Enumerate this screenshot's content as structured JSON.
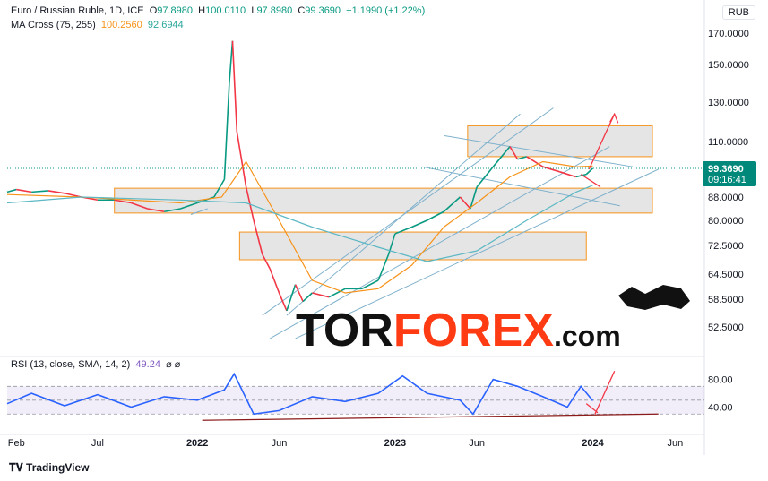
{
  "header": {
    "pair": "Euro / Russian Ruble, 1D, ICE",
    "o_label": "O",
    "o": "97.8980",
    "h_label": "H",
    "h": "100.0110",
    "l_label": "L",
    "l": "97.8980",
    "c_label": "C",
    "c": "99.3690",
    "chg": "+1.1990 (+1.22%)",
    "ma_label": "MA Cross (75, 255)",
    "ma_fast": "100.2560",
    "ma_slow": "92.6944",
    "rsi_label": "RSI (13, close, SMA, 14, 2)",
    "rsi_value": "49.24",
    "rsi_extra": "⌀ ⌀"
  },
  "currency": "RUB",
  "price_badge": {
    "value": "99.3690",
    "countdown": "09:16:41"
  },
  "watermark": {
    "brand_a": "TOR",
    "brand_b": "FOREX",
    "suffix": ".com"
  },
  "footer": {
    "logo": "TradingView"
  },
  "colors": {
    "up": "#089981",
    "down": "#f23645",
    "ma_fast": "#f7931a",
    "ma_slow": "#5cb8c4",
    "rsi": "#2962ff",
    "badge": "#00897b",
    "zone_border": "#f7931a",
    "annotation": "#f23645"
  },
  "chart_data": [
    {
      "type": "line",
      "title": "Euro / Russian Ruble, 1D, ICE",
      "ylim": [
        48,
        175
      ],
      "yticks": [
        "170.0000",
        "150.0000",
        "130.0000",
        "110.0000",
        "88.0000",
        "80.0000",
        "72.5000",
        "64.5000",
        "58.5000",
        "52.5000"
      ],
      "ytick_values": [
        170,
        150,
        130,
        110,
        88,
        80,
        72.5,
        64.5,
        58.5,
        52.5
      ],
      "xticks": [
        "Feb",
        "Jul",
        "2022",
        "Jun",
        "2023",
        "Jun",
        "2024",
        "Jun"
      ],
      "xtick_dates": [
        "2021-02-01",
        "2021-07-01",
        "2022-01-01",
        "2022-06-01",
        "2023-01-01",
        "2023-06-01",
        "2024-01-01",
        "2024-06-01"
      ],
      "last_price": 99.369,
      "series": [
        {
          "name": "close",
          "x": [
            "2021-01-15",
            "2021-02-01",
            "2021-03-01",
            "2021-04-01",
            "2021-05-01",
            "2021-06-01",
            "2021-07-01",
            "2021-08-01",
            "2021-09-01",
            "2021-10-01",
            "2021-11-01",
            "2021-12-01",
            "2022-01-01",
            "2022-02-01",
            "2022-02-20",
            "2022-03-01",
            "2022-03-07",
            "2022-03-15",
            "2022-04-01",
            "2022-04-15",
            "2022-05-01",
            "2022-05-15",
            "2022-06-01",
            "2022-06-15",
            "2022-07-01",
            "2022-07-15",
            "2022-08-01",
            "2022-09-01",
            "2022-10-01",
            "2022-11-01",
            "2022-12-01",
            "2022-12-20",
            "2023-01-01",
            "2023-02-01",
            "2023-03-01",
            "2023-04-01",
            "2023-05-01",
            "2023-05-20",
            "2023-06-01",
            "2023-07-01",
            "2023-08-01",
            "2023-08-15",
            "2023-09-01",
            "2023-10-01",
            "2023-11-01",
            "2023-12-01",
            "2023-12-20",
            "2024-01-01"
          ],
          "y": [
            90,
            91,
            90,
            90.5,
            89.5,
            88,
            87,
            87,
            86,
            84,
            83,
            84,
            86,
            88,
            95,
            140,
            165,
            115,
            92,
            80,
            70,
            66,
            60,
            56,
            62,
            58,
            60,
            59,
            61,
            61,
            63,
            70,
            76,
            78,
            80,
            83,
            88,
            84,
            92,
            100,
            108,
            103,
            104,
            100,
            98,
            96,
            97,
            99.4
          ]
        },
        {
          "name": "MA 75",
          "x": [
            "2021-01-15",
            "2021-06-01",
            "2021-12-01",
            "2022-02-15",
            "2022-04-01",
            "2022-06-01",
            "2022-08-01",
            "2022-10-01",
            "2022-12-01",
            "2023-02-01",
            "2023-04-01",
            "2023-06-01",
            "2023-08-01",
            "2023-10-01",
            "2023-12-01",
            "2024-01-01"
          ],
          "y": [
            89,
            88,
            86,
            88,
            102,
            80,
            63,
            60,
            61,
            67,
            78,
            86,
            96,
            102,
            100,
            100.3
          ]
        },
        {
          "name": "MA 255",
          "x": [
            "2021-01-15",
            "2021-06-01",
            "2021-12-01",
            "2022-04-01",
            "2022-08-01",
            "2022-12-01",
            "2023-03-01",
            "2023-06-01",
            "2023-09-01",
            "2023-12-01",
            "2024-01-01"
          ],
          "y": [
            86,
            88,
            87,
            86,
            78,
            72,
            68,
            71,
            80,
            90,
            92.7
          ]
        }
      ],
      "zones": [
        {
          "y_from": 104,
          "y_to": 118,
          "x_from": "2023-05-15",
          "x_to": "2024-04-20"
        },
        {
          "y_from": 82.5,
          "y_to": 91.5,
          "x_from": "2021-08-01",
          "x_to": "2024-04-20"
        },
        {
          "y_from": 68.5,
          "y_to": 76.5,
          "x_from": "2022-03-20",
          "x_to": "2023-12-20"
        }
      ]
    },
    {
      "type": "line",
      "title": "RSI (13, close, SMA, 14, 2)",
      "ylim": [
        20,
        95
      ],
      "yticks": [
        "80.00",
        "40.00"
      ],
      "ytick_values": [
        80,
        40
      ],
      "band": [
        30,
        70
      ],
      "series": [
        {
          "name": "RSI",
          "x": [
            "2021-01-15",
            "2021-03-01",
            "2021-05-01",
            "2021-07-01",
            "2021-09-01",
            "2021-11-01",
            "2022-01-01",
            "2022-02-20",
            "2022-03-10",
            "2022-04-15",
            "2022-06-01",
            "2022-08-01",
            "2022-10-01",
            "2022-12-01",
            "2023-01-15",
            "2023-03-01",
            "2023-05-01",
            "2023-05-25",
            "2023-07-01",
            "2023-08-15",
            "2023-10-01",
            "2023-11-15",
            "2023-12-10",
            "2024-01-01"
          ],
          "y": [
            45,
            60,
            42,
            58,
            40,
            55,
            50,
            65,
            88,
            30,
            35,
            55,
            48,
            60,
            85,
            60,
            50,
            30,
            80,
            70,
            55,
            40,
            70,
            49.2
          ]
        }
      ]
    }
  ]
}
